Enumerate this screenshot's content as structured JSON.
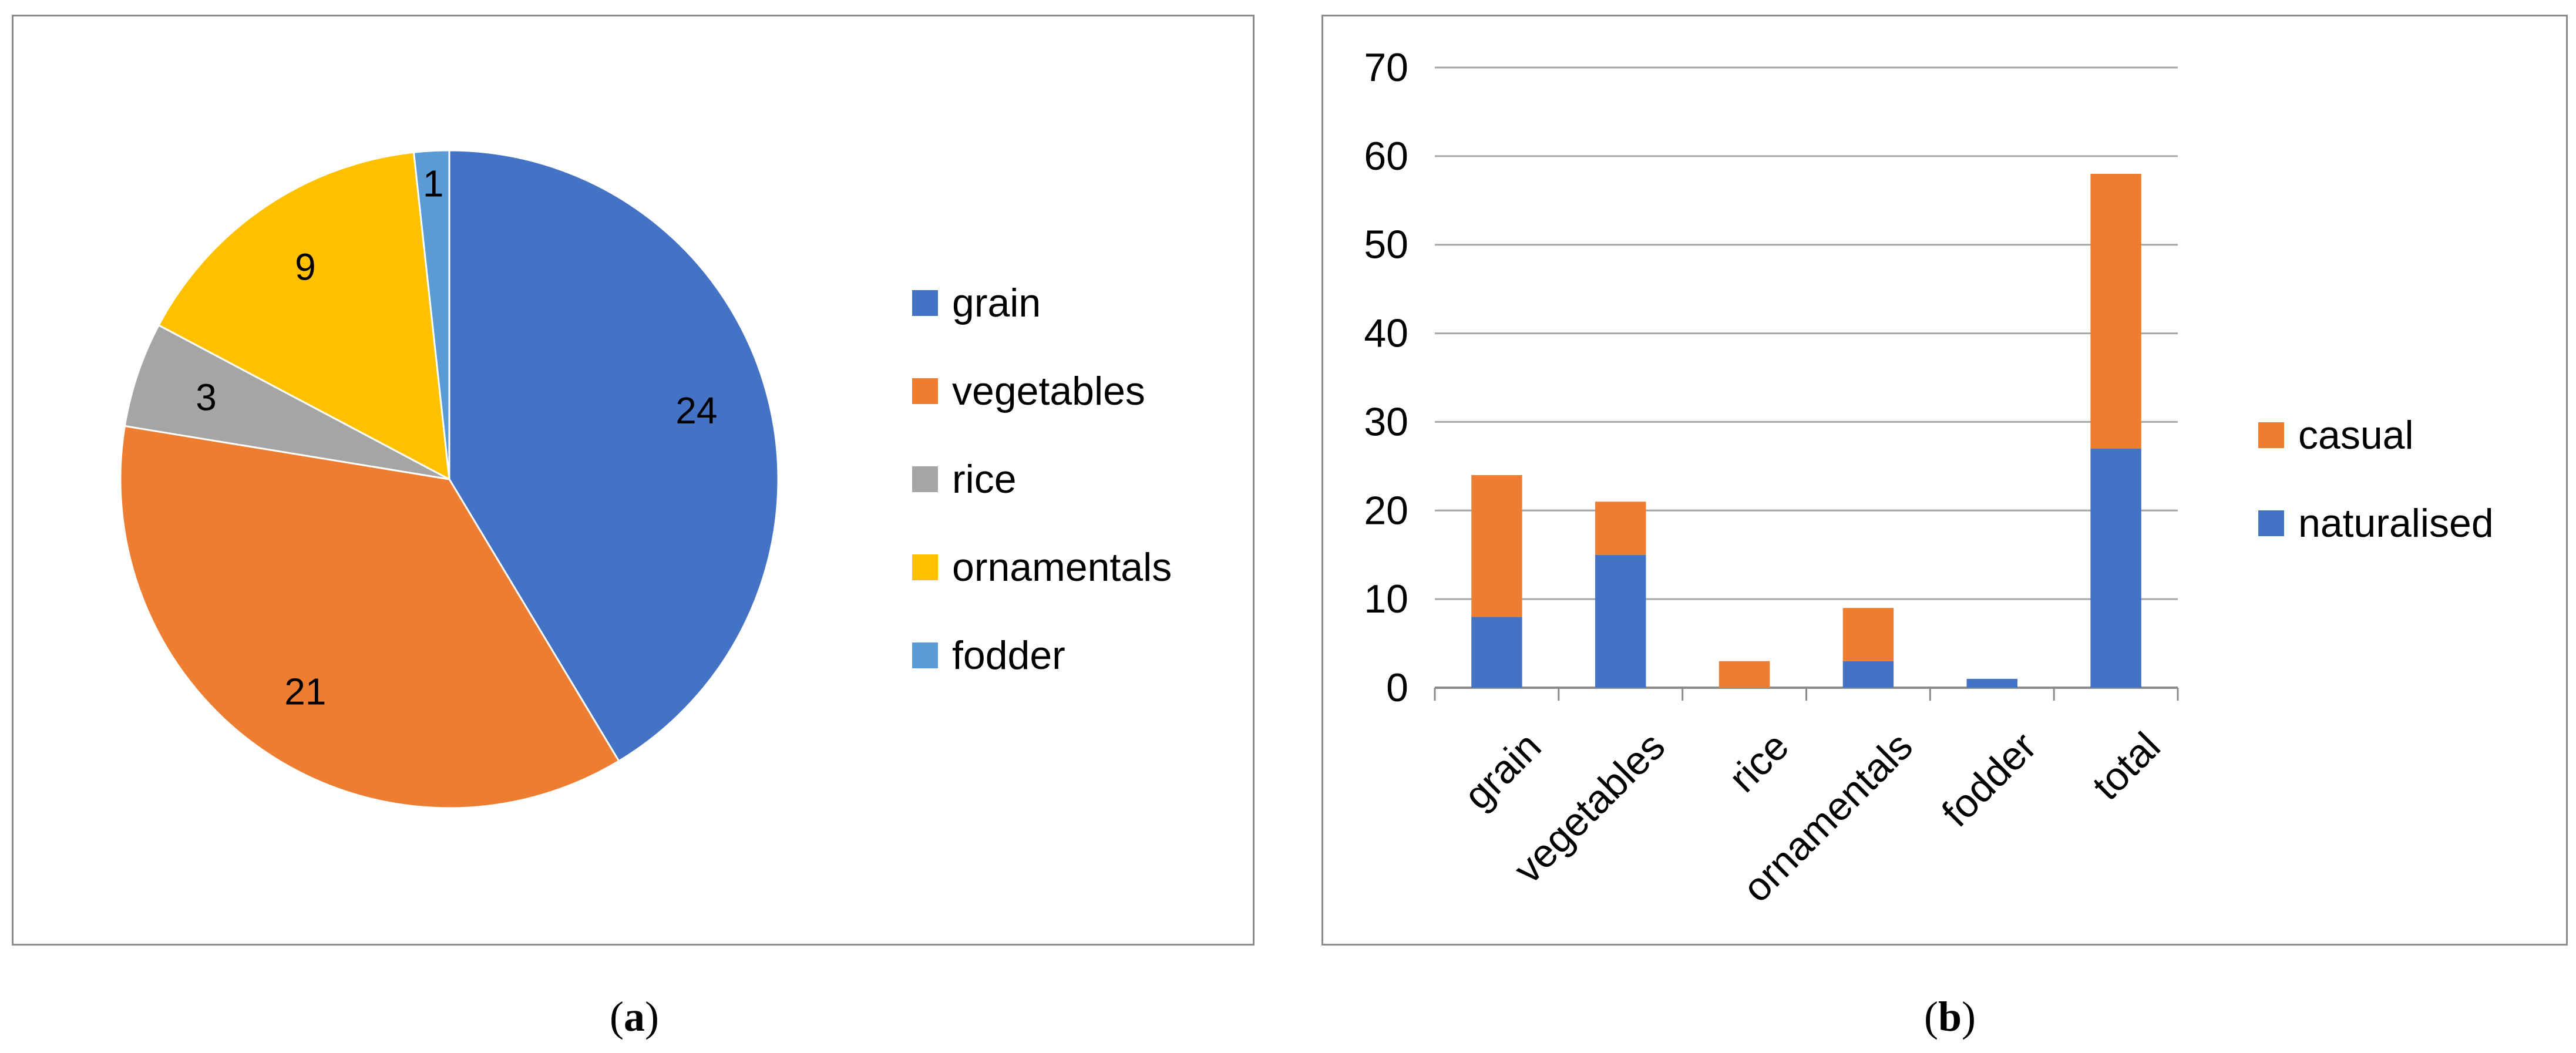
{
  "chart_data": [
    {
      "type": "pie",
      "title": "",
      "slices": [
        {
          "label": "grain",
          "value": 24,
          "color": "#4472C4"
        },
        {
          "label": "vegetables",
          "value": 21,
          "color": "#ED7D31"
        },
        {
          "label": "rice",
          "value": 3,
          "color": "#A5A5A5"
        },
        {
          "label": "ornamentals",
          "value": 9,
          "color": "#FFC000"
        },
        {
          "label": "fodder",
          "value": 1,
          "color": "#5B9BD5"
        }
      ],
      "legend_position": "right",
      "caption": "a"
    },
    {
      "type": "bar",
      "stacked": true,
      "title": "",
      "categories": [
        "grain",
        "vegetables",
        "rice",
        "ornamentals",
        "fodder",
        "total"
      ],
      "series": [
        {
          "name": "naturalised",
          "values": [
            8,
            15,
            0,
            3,
            1,
            27
          ],
          "color": "#4472C4"
        },
        {
          "name": "casual",
          "values": [
            16,
            6,
            3,
            6,
            0,
            31
          ],
          "color": "#ED7D31"
        }
      ],
      "ylim": [
        0,
        70
      ],
      "yticks": [
        0,
        10,
        20,
        30,
        40,
        50,
        60,
        70
      ],
      "grid": true,
      "legend_position": "right",
      "legend_order": [
        "casual",
        "naturalised"
      ],
      "caption": "b"
    }
  ],
  "captions": {
    "a": "a",
    "b": "b"
  }
}
